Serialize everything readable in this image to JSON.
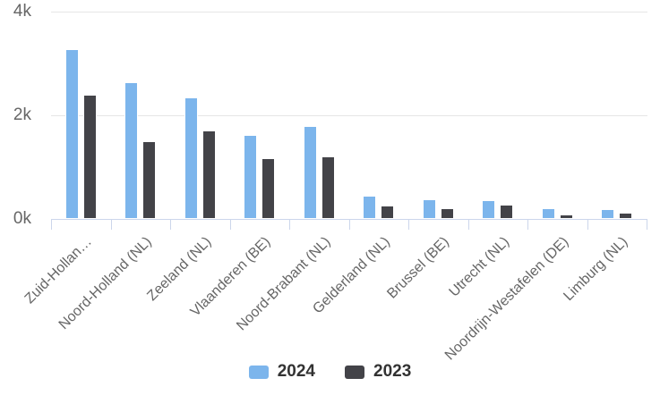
{
  "chart_data": {
    "type": "bar",
    "title": "",
    "xlabel": "",
    "ylabel": "",
    "categories": [
      "Zuid-Hollan…",
      "Noord-Holland (NL)",
      "Zeeland (NL)",
      "Vlaanderen (BE)",
      "Noord-Brabant (NL)",
      "Gelderland (NL)",
      "Brussel (BE)",
      "Utrecht (NL)",
      "Noordrijn-Westafelen (DE)",
      "Limburg (NL)"
    ],
    "series": [
      {
        "name": "2024",
        "color": "#7cb5ec",
        "values": [
          3270,
          2640,
          2350,
          1620,
          1800,
          450,
          380,
          360,
          210,
          190
        ]
      },
      {
        "name": "2023",
        "color": "#434348",
        "values": [
          2400,
          1500,
          1700,
          1170,
          1200,
          260,
          210,
          280,
          90,
          115
        ]
      }
    ],
    "ylim": [
      0,
      4000
    ],
    "yticks": [
      {
        "label": "4k",
        "value": 4000
      },
      {
        "label": "2k",
        "value": 2000
      },
      {
        "label": "0k",
        "value": 0
      }
    ],
    "grid": true,
    "legend_position": "bottom"
  },
  "colors": {
    "background": "#ffffff",
    "series_2024": "#7cb5ec",
    "series_2023": "#434348",
    "gridline": "#e6e6e6",
    "axis_line": "#ccd6eb",
    "axis_label_text": "#666666",
    "legend_text": "#333333"
  }
}
